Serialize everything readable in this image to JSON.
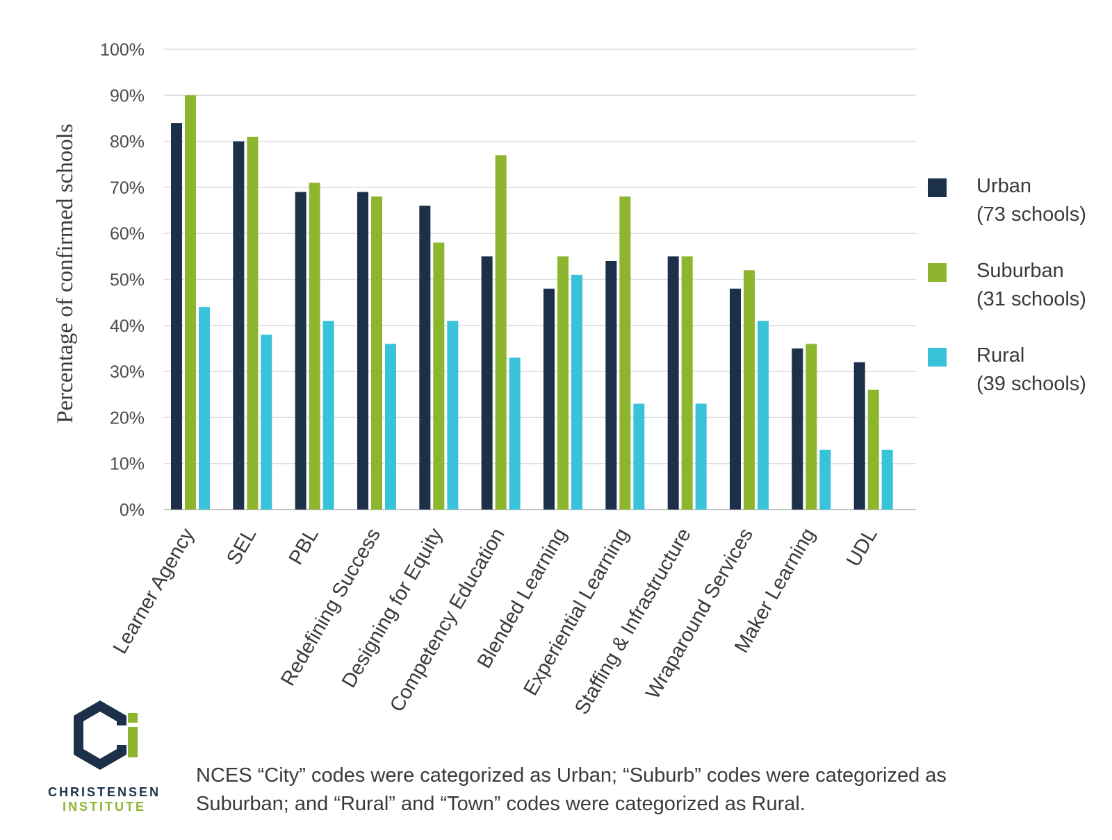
{
  "chart_data": {
    "type": "bar",
    "title": "",
    "xlabel": "",
    "ylabel": "Percentage of confirmed schools",
    "ylim": [
      0,
      100
    ],
    "yticks": [
      "0%",
      "10%",
      "20%",
      "30%",
      "40%",
      "50%",
      "60%",
      "70%",
      "80%",
      "90%",
      "100%"
    ],
    "grid": true,
    "legend_position": "right",
    "categories": [
      "Learner Agency",
      "SEL",
      "PBL",
      "Redefining Success",
      "Designing for Equity",
      "Competency Education",
      "Blended Learning",
      "Experiential Learning",
      "Staffing & Infrastructure",
      "Wraparound Services",
      "Maker Learning",
      "UDL"
    ],
    "series": [
      {
        "name": "Urban",
        "detail": "(73 schools)",
        "color": "#1c3049",
        "values": [
          84,
          80,
          69,
          69,
          66,
          55,
          48,
          54,
          55,
          48,
          35,
          32
        ]
      },
      {
        "name": "Suburban",
        "detail": "(31 schools)",
        "color": "#8db52d",
        "values": [
          90,
          81,
          71,
          68,
          58,
          77,
          55,
          68,
          55,
          52,
          36,
          26
        ]
      },
      {
        "name": "Rural",
        "detail": "(39 schools)",
        "color": "#39c3db",
        "values": [
          44,
          38,
          41,
          36,
          41,
          33,
          51,
          23,
          23,
          41,
          13,
          13
        ]
      }
    ]
  },
  "footnote": {
    "line1": "NCES “City” codes were categorized as Urban; “Suburb” codes were categorized as",
    "line2": "Suburban; and “Rural” and “Town” codes were categorized as Rural."
  },
  "logo": {
    "name": "CHRISTENSEN",
    "sub": "INSTITUTE",
    "primary_color": "#1c3049",
    "accent_color": "#8db52d"
  }
}
